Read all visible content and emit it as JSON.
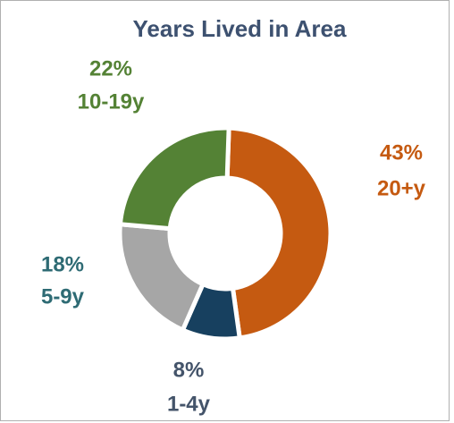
{
  "chart_data": {
    "type": "donut",
    "title": "Years Lived in Area",
    "categories": [
      "20+y",
      "1-4y",
      "5-9y",
      "10-19y"
    ],
    "values": [
      43,
      8,
      18,
      22
    ],
    "value_labels": [
      "43%",
      "8%",
      "18%",
      "22%"
    ],
    "colors": [
      "#c55a11",
      "#17405f",
      "#a6a6a6",
      "#548235"
    ],
    "label_colors": [
      "#c55a11",
      "#44546a",
      "#2e6b74",
      "#548235"
    ]
  }
}
